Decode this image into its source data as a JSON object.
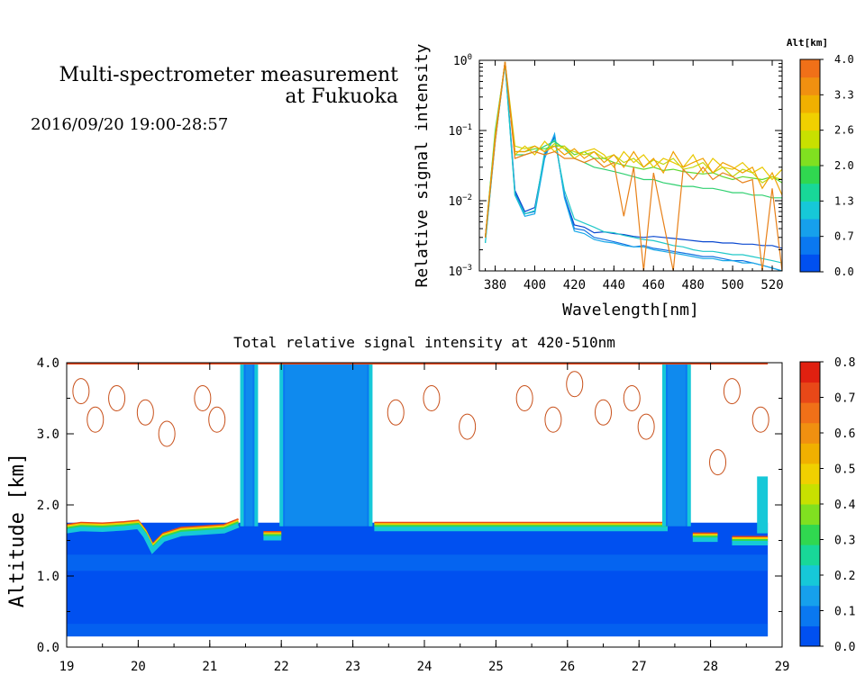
{
  "header": {
    "title_line1": "Multi-spectrometer measurement",
    "title_line2": "at Fukuoka",
    "datetime": "2016/09/20 19:00-28:57"
  },
  "chart_data": [
    {
      "type": "line",
      "xlabel": "Wavelength[nm]",
      "ylabel": "Relative signal intensity",
      "yscale": "log",
      "xlim": [
        372,
        525
      ],
      "ylim": [
        0.001,
        1
      ],
      "x_ticks": [
        380,
        400,
        420,
        440,
        460,
        480,
        500,
        520
      ],
      "y_ticks": [
        {
          "base": "10",
          "exp": "0",
          "v": 1
        },
        {
          "base": "10",
          "exp": "−1",
          "v": 0.1
        },
        {
          "base": "10",
          "exp": "−2",
          "v": 0.01
        },
        {
          "base": "10",
          "exp": "−3",
          "v": 0.001
        }
      ],
      "x": [
        375,
        380,
        385,
        390,
        395,
        400,
        405,
        410,
        415,
        420,
        425,
        430,
        435,
        440,
        445,
        450,
        455,
        460,
        465,
        470,
        475,
        480,
        485,
        490,
        495,
        500,
        505,
        510,
        515,
        520,
        525
      ],
      "colorbar": {
        "title": "Alt[km]",
        "ticks": [
          "4.0",
          "3.3",
          "2.6",
          "2.0",
          "1.3",
          "0.7",
          "0.0"
        ],
        "colors": [
          "#0050f0",
          "#0a78f0",
          "#16a0ec",
          "#16c8d8",
          "#18d898",
          "#30d850",
          "#80e020",
          "#c8e000",
          "#f0d000",
          "#f0b000",
          "#f09010",
          "#f07018"
        ]
      },
      "series": [
        {
          "color": "#0a48d0",
          "values": [
            0.003,
            0.08,
            0.95,
            0.014,
            0.007,
            0.008,
            0.045,
            0.08,
            0.012,
            0.0045,
            0.0042,
            0.0035,
            0.0036,
            0.0034,
            0.0033,
            0.0031,
            0.003,
            0.0031,
            0.003,
            0.0029,
            0.0028,
            0.0027,
            0.0026,
            0.0026,
            0.0025,
            0.0025,
            0.0024,
            0.0024,
            0.0023,
            0.0023,
            0.0021
          ]
        },
        {
          "color": "#1070e0",
          "values": [
            0.003,
            0.075,
            0.95,
            0.013,
            0.0065,
            0.007,
            0.045,
            0.085,
            0.012,
            0.004,
            0.0038,
            0.003,
            0.0028,
            0.0026,
            0.0024,
            0.0022,
            0.0023,
            0.0021,
            0.002,
            0.0019,
            0.0018,
            0.0017,
            0.0016,
            0.0016,
            0.0015,
            0.0014,
            0.0014,
            0.0013,
            0.0012,
            0.0011,
            0.001
          ]
        },
        {
          "color": "#18a8e8",
          "values": [
            0.0025,
            0.07,
            0.9,
            0.012,
            0.006,
            0.0065,
            0.04,
            0.09,
            0.011,
            0.0037,
            0.0034,
            0.0028,
            0.0026,
            0.0025,
            0.0023,
            0.0022,
            0.0022,
            0.002,
            0.0019,
            0.0018,
            0.0017,
            0.0016,
            0.0015,
            0.0015,
            0.0014,
            0.0014,
            0.0013,
            0.0013,
            0.0012,
            0.0011,
            0.001
          ]
        },
        {
          "color": "#20c8c8",
          "values": [
            0.0025,
            0.07,
            0.9,
            0.012,
            0.0065,
            0.0072,
            0.05,
            0.075,
            0.014,
            0.0055,
            0.0048,
            0.0042,
            0.0036,
            0.0035,
            0.0032,
            0.003,
            0.0028,
            0.0027,
            0.0025,
            0.0023,
            0.0022,
            0.002,
            0.0019,
            0.0019,
            0.0018,
            0.0017,
            0.0017,
            0.0016,
            0.0015,
            0.0014,
            0.0013
          ]
        },
        {
          "color": "#30d070",
          "values": [
            0.003,
            0.1,
            0.9,
            0.045,
            0.045,
            0.05,
            0.06,
            0.07,
            0.055,
            0.04,
            0.035,
            0.03,
            0.028,
            0.026,
            0.024,
            0.022,
            0.02,
            0.02,
            0.018,
            0.017,
            0.016,
            0.016,
            0.015,
            0.015,
            0.014,
            0.013,
            0.013,
            0.012,
            0.012,
            0.011,
            0.011
          ]
        },
        {
          "color": "#60d830",
          "values": [
            0.003,
            0.09,
            0.9,
            0.05,
            0.05,
            0.055,
            0.055,
            0.06,
            0.06,
            0.045,
            0.05,
            0.04,
            0.04,
            0.035,
            0.032,
            0.03,
            0.028,
            0.03,
            0.027,
            0.028,
            0.026,
            0.025,
            0.024,
            0.025,
            0.022,
            0.02,
            0.022,
            0.021,
            0.02,
            0.022,
            0.018
          ]
        },
        {
          "color": "#c0d810",
          "values": [
            0.003,
            0.08,
            0.95,
            0.06,
            0.055,
            0.06,
            0.05,
            0.065,
            0.055,
            0.05,
            0.045,
            0.05,
            0.04,
            0.045,
            0.035,
            0.04,
            0.03,
            0.038,
            0.033,
            0.04,
            0.028,
            0.03,
            0.035,
            0.025,
            0.03,
            0.022,
            0.028,
            0.025,
            0.018,
            0.022,
            0.02
          ]
        },
        {
          "color": "#e8c800",
          "values": [
            0.003,
            0.085,
            0.95,
            0.045,
            0.06,
            0.045,
            0.07,
            0.05,
            0.06,
            0.04,
            0.05,
            0.055,
            0.045,
            0.03,
            0.05,
            0.035,
            0.045,
            0.03,
            0.04,
            0.035,
            0.03,
            0.045,
            0.025,
            0.04,
            0.03,
            0.028,
            0.035,
            0.025,
            0.03,
            0.02,
            0.028
          ]
        },
        {
          "color": "#f0a000",
          "values": [
            0.003,
            0.075,
            0.95,
            0.05,
            0.05,
            0.06,
            0.05,
            0.06,
            0.045,
            0.055,
            0.04,
            0.05,
            0.035,
            0.045,
            0.03,
            0.05,
            0.03,
            0.04,
            0.025,
            0.05,
            0.03,
            0.035,
            0.04,
            0.025,
            0.035,
            0.03,
            0.025,
            0.03,
            0.015,
            0.025,
            0.012
          ]
        },
        {
          "color": "#e88018",
          "values": [
            0.003,
            0.07,
            0.95,
            0.04,
            0.045,
            0.05,
            0.045,
            0.05,
            0.04,
            0.04,
            0.035,
            0.04,
            0.03,
            0.035,
            0.006,
            0.03,
            0.001,
            0.025,
            0.005,
            0.001,
            0.028,
            0.02,
            0.03,
            0.02,
            0.025,
            0.022,
            0.018,
            0.02,
            0.001,
            0.015,
            0.001
          ]
        }
      ]
    },
    {
      "type": "heatmap",
      "title": "Total relative signal intensity at 420-510nm",
      "ylabel": "Altitude [km]",
      "xlim": [
        19,
        29
      ],
      "ylim": [
        0,
        4
      ],
      "x_ticks": [
        19,
        20,
        21,
        22,
        23,
        24,
        25,
        26,
        27,
        28,
        29
      ],
      "y_ticks": [
        "0.0",
        "1.0",
        "2.0",
        "3.0",
        "4.0"
      ],
      "data_x_range": [
        19,
        28.8
      ],
      "data_y_range": [
        0.15,
        4.0
      ],
      "colorbar": {
        "ticks": [
          "0.0",
          "0.1",
          "0.2",
          "0.3",
          "0.4",
          "0.5",
          "0.6",
          "0.7",
          "0.8"
        ],
        "colors": [
          "#0050f0",
          "#0a78f0",
          "#16a0ec",
          "#16c8d8",
          "#18d898",
          "#30d850",
          "#80e020",
          "#c8e000",
          "#f0d000",
          "#f0b000",
          "#f09010",
          "#f07018",
          "#e84818",
          "#e02010"
        ]
      },
      "cloud_base": [
        [
          19.0,
          1.72
        ],
        [
          19.2,
          1.75
        ],
        [
          19.5,
          1.74
        ],
        [
          19.8,
          1.76
        ],
        [
          20.0,
          1.78
        ],
        [
          20.1,
          1.65
        ],
        [
          20.2,
          1.45
        ],
        [
          20.35,
          1.6
        ],
        [
          20.6,
          1.68
        ],
        [
          20.9,
          1.7
        ],
        [
          21.2,
          1.72
        ],
        [
          21.4,
          1.8
        ]
      ],
      "segments": [
        {
          "x0": 21.75,
          "x1": 22.0,
          "base": 1.62
        },
        {
          "x0": 23.3,
          "x1": 27.4,
          "base": 1.75
        },
        {
          "x0": 27.75,
          "x1": 28.1,
          "base": 1.6
        },
        {
          "x0": 28.3,
          "x1": 28.8,
          "base": 1.55
        }
      ]
    }
  ]
}
